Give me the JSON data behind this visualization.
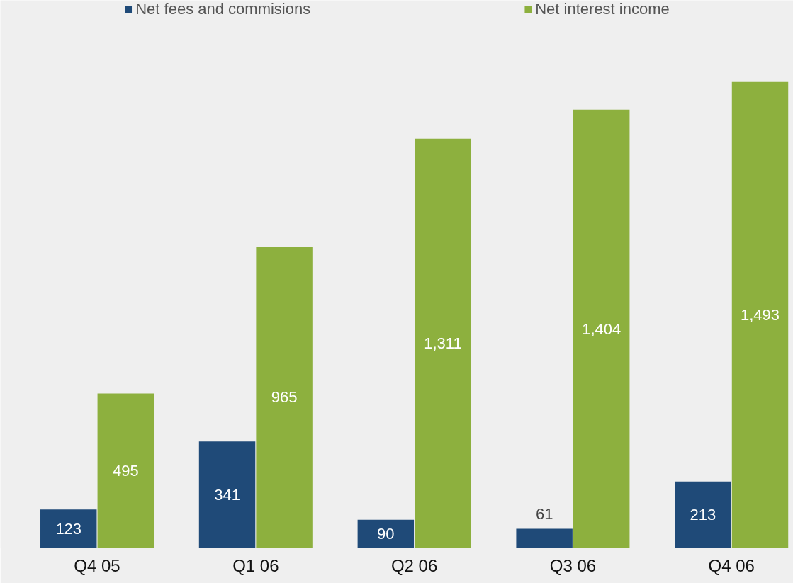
{
  "chart_data": {
    "type": "bar",
    "categories": [
      "Q4 05",
      "Q1 06",
      "Q2 06",
      "Q3 06",
      "Q4 06"
    ],
    "series": [
      {
        "name": "Net fees and commisions",
        "color": "#1f4a78",
        "values": [
          123,
          341,
          90,
          61,
          213
        ],
        "value_labels": [
          "123",
          "341",
          "90",
          "61",
          "213"
        ]
      },
      {
        "name": "Net interest income",
        "color": "#8db03e",
        "values": [
          495,
          965,
          1311,
          1404,
          1493
        ],
        "value_labels": [
          "495",
          "965",
          "1,311",
          "1,404",
          "1,493"
        ]
      }
    ],
    "grid": false,
    "legend": "top"
  }
}
